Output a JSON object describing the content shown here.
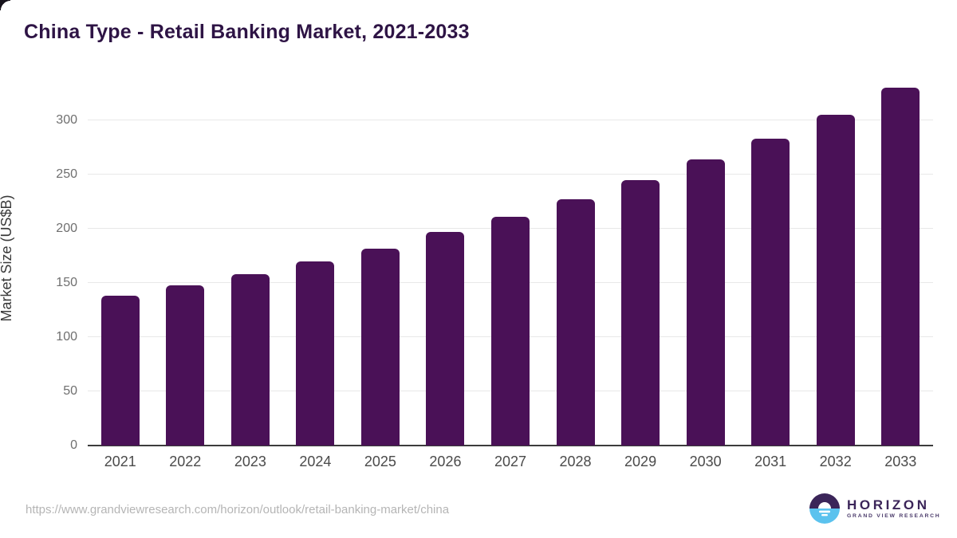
{
  "title": "China Type - Retail Banking Market, 2021-2033",
  "chart_data": {
    "type": "bar",
    "title": "China Type - Retail Banking Market, 2021-2033",
    "categories": [
      "2021",
      "2022",
      "2023",
      "2024",
      "2025",
      "2026",
      "2027",
      "2028",
      "2029",
      "2030",
      "2031",
      "2032",
      "2033"
    ],
    "values": [
      138,
      148,
      158,
      170,
      182,
      197,
      211,
      227,
      245,
      264,
      283,
      305,
      330
    ],
    "xlabel": "",
    "ylabel": "Market Size (US$B)",
    "ylim": [
      0,
      345
    ],
    "yticks": [
      0,
      50,
      100,
      150,
      200,
      250,
      300
    ],
    "grid": true,
    "legend": "none",
    "bar_color": "#4A1157"
  },
  "colors": {
    "bar": "#4A1157",
    "title_text": "#2E1445",
    "axis_line": "#3C3C3C",
    "gridline": "#E8E8E8",
    "ytick_text": "#6F6F6F",
    "xtick_text": "#4A4A4A",
    "url_text": "#B5B5B5",
    "logo_purple": "#3B2559",
    "logo_blue": "#5BC2EE"
  },
  "footer": {
    "url": "https://www.grandviewresearch.com/horizon/outlook/retail-banking-market/china",
    "logo_name": "HORIZON",
    "logo_subtitle": "GRAND VIEW RESEARCH"
  }
}
